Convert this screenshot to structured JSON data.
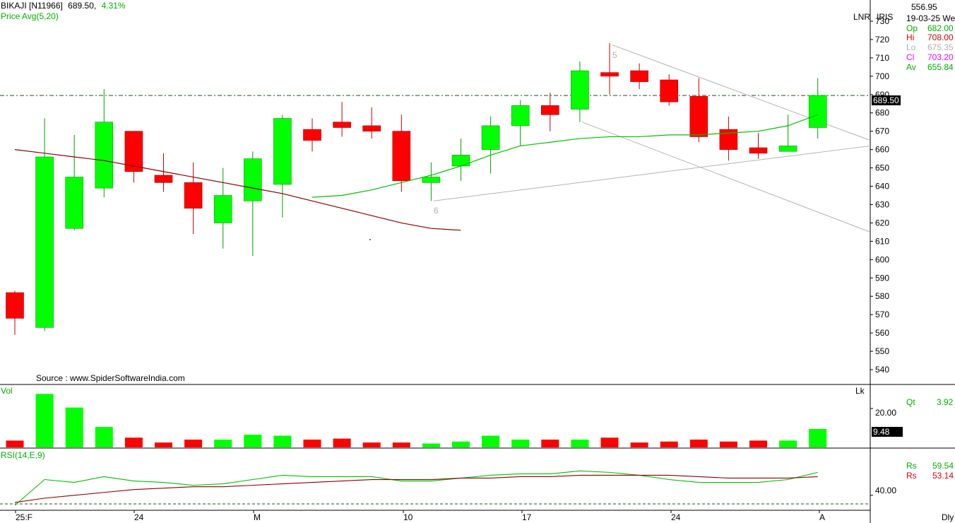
{
  "header": {
    "symbol": "BIKAJI [N11966]",
    "last": "689.50,",
    "change": "4.31%",
    "indicator": "Price  Avg(5,20)"
  },
  "info_panel": {
    "top_value": "556.95",
    "lnr": "LNR",
    "iris": "IRIS",
    "date": "19-03-25 We",
    "op_label": "Op",
    "op_value": "682.00",
    "hi_label": "Hi",
    "hi_value": "708.00",
    "lo_label": "Lo",
    "lo_value": "675.35",
    "cl_label": "Cl",
    "cl_value": "703.20",
    "av_label": "Av",
    "av_value": "655.84"
  },
  "source": "Source : www.SpiderSoftwareIndia.com",
  "last_price_box": "689.50",
  "volume_panel": {
    "label": "Vol",
    "unit": "Lk",
    "qt_label": "Qt",
    "qt_value": "3.92",
    "tick": "20.00",
    "last_box": "9.48"
  },
  "rsi_panel": {
    "label": "RSI(14,E,9)",
    "rs1_label": "Rs",
    "rs1_value": "59.54",
    "rs2_label": "Rs",
    "rs2_value": "53.14",
    "tick": "40.00"
  },
  "x_labels": [
    "25:F",
    "24",
    "M",
    "10",
    "17",
    "24",
    "A"
  ],
  "period": "Dly",
  "pattern_labels": [
    "5",
    "6"
  ],
  "colors": {
    "up": "#00ff00",
    "down": "#ff0000",
    "avg5": "#00c000",
    "avg20": "#8b0000",
    "trend": "#b4b4b4"
  },
  "chart_data": {
    "type": "candlestick",
    "ylim": [
      535,
      735
    ],
    "yticks": [
      540,
      550,
      560,
      570,
      580,
      590,
      600,
      610,
      620,
      630,
      640,
      650,
      660,
      670,
      680,
      690,
      700,
      710,
      720,
      730
    ],
    "reference_line": 689.5,
    "candles": [
      {
        "o": 582,
        "h": 583,
        "l": 559,
        "c": 568
      },
      {
        "o": 563,
        "h": 677,
        "l": 561,
        "c": 656
      },
      {
        "o": 617,
        "h": 668,
        "l": 616,
        "c": 645
      },
      {
        "o": 639,
        "h": 693,
        "l": 634,
        "c": 675
      },
      {
        "o": 670,
        "h": 670,
        "l": 642,
        "c": 648
      },
      {
        "o": 646,
        "h": 658,
        "l": 637,
        "c": 642
      },
      {
        "o": 642,
        "h": 653,
        "l": 614,
        "c": 628
      },
      {
        "o": 620,
        "h": 650,
        "l": 606,
        "c": 635
      },
      {
        "o": 632,
        "h": 659,
        "l": 602,
        "c": 655
      },
      {
        "o": 641,
        "h": 679,
        "l": 623,
        "c": 677
      },
      {
        "o": 671,
        "h": 677,
        "l": 659,
        "c": 665
      },
      {
        "o": 675,
        "h": 686,
        "l": 667,
        "c": 672
      },
      {
        "o": 673,
        "h": 683,
        "l": 666,
        "c": 670
      },
      {
        "o": 670,
        "h": 679,
        "l": 637,
        "c": 643
      },
      {
        "o": 642,
        "h": 653,
        "l": 632,
        "c": 645
      },
      {
        "o": 651,
        "h": 666,
        "l": 643,
        "c": 657
      },
      {
        "o": 660,
        "h": 678,
        "l": 647,
        "c": 673
      },
      {
        "o": 673,
        "h": 687,
        "l": 662,
        "c": 684
      },
      {
        "o": 684,
        "h": 691,
        "l": 670,
        "c": 679
      },
      {
        "o": 682,
        "h": 708,
        "l": 675,
        "c": 703
      },
      {
        "o": 702,
        "h": 718,
        "l": 690,
        "c": 700
      },
      {
        "o": 703,
        "h": 707,
        "l": 693,
        "c": 697
      },
      {
        "o": 698,
        "h": 701,
        "l": 684,
        "c": 686
      },
      {
        "o": 689,
        "h": 699,
        "l": 664,
        "c": 667
      },
      {
        "o": 671,
        "h": 678,
        "l": 654,
        "c": 660
      },
      {
        "o": 661,
        "h": 669,
        "l": 655,
        "c": 658
      },
      {
        "o": 659,
        "h": 679,
        "l": 659,
        "c": 662
      },
      {
        "o": 672,
        "h": 699,
        "l": 666,
        "c": 689.5
      }
    ],
    "avg20": [
      660,
      658,
      656,
      654,
      651,
      648,
      645,
      642,
      639,
      636,
      632,
      628,
      624,
      620,
      617,
      616
    ],
    "avg5": [
      634,
      635,
      638,
      642,
      646,
      651,
      657,
      662,
      664,
      666,
      667,
      667,
      668,
      668,
      669,
      670,
      673,
      679
    ],
    "volume": {
      "ylim": [
        0,
        28
      ],
      "values": [
        3.5,
        27.5,
        20.5,
        10.5,
        5,
        2.5,
        4,
        4,
        6.5,
        6,
        4,
        4.5,
        2.5,
        2.5,
        2,
        3,
        6,
        4,
        4,
        4,
        5,
        2.5,
        3,
        4,
        3,
        3.5,
        3.5,
        9.48
      ]
    },
    "rsi": {
      "ylim": [
        33,
        70
      ],
      "rsi": [
        33,
        51,
        49,
        53,
        50,
        49,
        47,
        48,
        51,
        54,
        53,
        53,
        53,
        50,
        50,
        52,
        54,
        55,
        55,
        57,
        56,
        54,
        51,
        49,
        49,
        49,
        51,
        56
      ],
      "signal": [
        35,
        38,
        40,
        42,
        44,
        45,
        46,
        46,
        47,
        48,
        49,
        50,
        51,
        51,
        51,
        52,
        52,
        53,
        53,
        54,
        54,
        54,
        54,
        53,
        52,
        52,
        52,
        53
      ]
    }
  }
}
